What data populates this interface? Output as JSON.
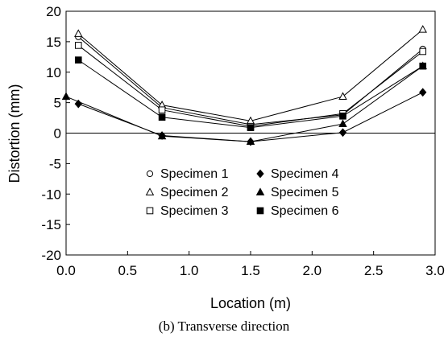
{
  "chart_data": {
    "type": "line",
    "xlabel": "Location (m)",
    "ylabel": "Distortion (mm)",
    "caption": "(b) Transverse direction",
    "xlim": [
      0.0,
      3.0
    ],
    "ylim": [
      -20,
      20
    ],
    "x_ticks": [
      "0.0",
      "0.5",
      "1.0",
      "1.5",
      "2.0",
      "2.5",
      "3.0"
    ],
    "y_ticks": [
      "20",
      "15",
      "10",
      "5",
      "0",
      "-5",
      "-10",
      "-15",
      "-20"
    ],
    "grid": false,
    "legend_position": "lower-center",
    "series": [
      {
        "name": "Specimen 1",
        "marker": "circle-open",
        "x": [
          0.1,
          0.78,
          1.5,
          2.25,
          2.9
        ],
        "y": [
          15.8,
          4.2,
          1.4,
          3.0,
          13.8
        ]
      },
      {
        "name": "Specimen 2",
        "marker": "triangle-open",
        "x": [
          0.1,
          0.78,
          1.5,
          2.25,
          2.9
        ],
        "y": [
          16.3,
          4.6,
          2.0,
          6.0,
          17.0
        ]
      },
      {
        "name": "Specimen 3",
        "marker": "square-open",
        "x": [
          0.1,
          0.78,
          1.5,
          2.25,
          2.9
        ],
        "y": [
          14.4,
          3.8,
          1.1,
          3.2,
          13.4
        ]
      },
      {
        "name": "Specimen 4",
        "marker": "diamond-filled",
        "x": [
          0.1,
          0.78,
          1.5,
          2.25,
          2.9
        ],
        "y": [
          4.8,
          -0.4,
          -1.4,
          0.1,
          6.7
        ]
      },
      {
        "name": "Specimen 5",
        "marker": "triangle-filled",
        "x": [
          0.0,
          0.78,
          1.5,
          2.25,
          2.9
        ],
        "y": [
          6.0,
          -0.5,
          -1.4,
          1.5,
          11.0
        ]
      },
      {
        "name": "Specimen 6",
        "marker": "square-filled",
        "x": [
          0.1,
          0.78,
          1.5,
          2.25,
          2.9
        ],
        "y": [
          12.0,
          2.6,
          0.9,
          2.8,
          11.0
        ]
      }
    ]
  }
}
